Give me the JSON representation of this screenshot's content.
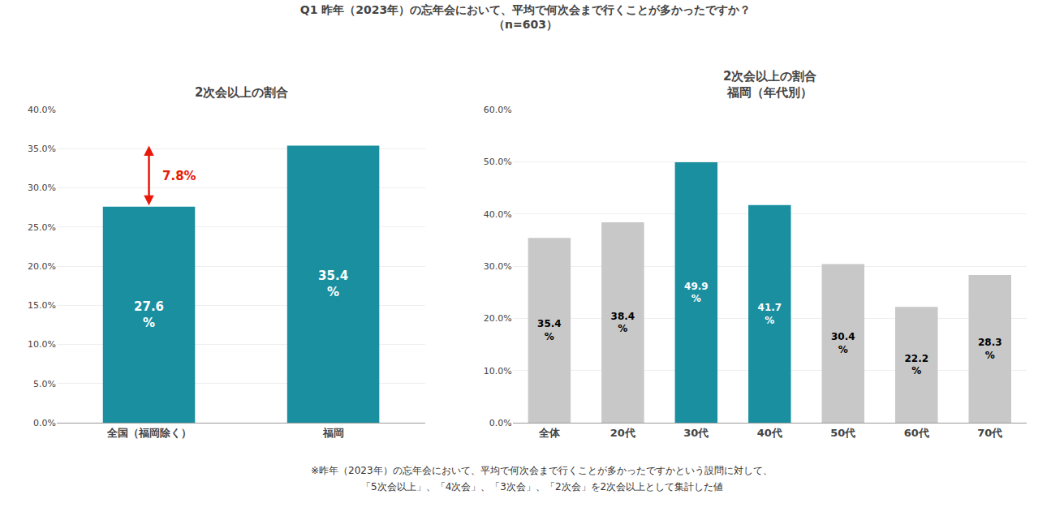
{
  "title": [
    "Q1 昨年（2023年）の忘年会において、平均で何次会まで行くことが多かったですか？",
    "（n=603）"
  ],
  "annotations": [
    "※昨年（2023年）の忘年会において、平均で何次会まで行くことが多かったですかという設問に対して、",
    "「5次会以上」、「4次会」、「3次会」、「2次会」を2次会以上として集計した値"
  ],
  "chart_data": [
    {
      "type": "bar",
      "title": [
        "2次会以上の割合"
      ],
      "categories": [
        "全国（福岡除く）",
        "福岡"
      ],
      "values": [
        27.6,
        35.4
      ],
      "value_labels": [
        "27.6\n%",
        "35.4\n%"
      ],
      "data_labels": true,
      "colors": [
        "#1a8fa0",
        "#1a8fa0"
      ],
      "ylim": [
        0,
        40
      ],
      "yticks": [
        {
          "value": 0,
          "label": "0.0%"
        },
        {
          "value": 5,
          "label": "5.0%"
        },
        {
          "value": 10,
          "label": "10.0%"
        },
        {
          "value": 15,
          "label": "15.0%"
        },
        {
          "value": 20,
          "label": "20.0%"
        },
        {
          "value": 25,
          "label": "25.0%"
        },
        {
          "value": 30,
          "label": "30.0%"
        },
        {
          "value": 35,
          "label": "35.0%"
        },
        {
          "value": 40,
          "label": "40.0%"
        }
      ],
      "grid": true,
      "annotations": [
        {
          "text": "7.8%",
          "category": "全国（福岡除く）",
          "from": 27.6,
          "to": 35.4,
          "color": "#e8190a"
        }
      ]
    },
    {
      "type": "bar",
      "title": [
        "2次会以上の割合",
        "福岡（年代別）"
      ],
      "categories": [
        "全体",
        "20代",
        "30代",
        "40代",
        "50代",
        "60代",
        "70代"
      ],
      "values": [
        35.4,
        38.4,
        49.9,
        41.7,
        30.4,
        22.2,
        28.3
      ],
      "value_labels": [
        "35.4\n%",
        "38.4\n%",
        "49.9\n%",
        "41.7\n%",
        "30.4\n%",
        "22.2\n%",
        "28.3\n%"
      ],
      "data_labels": true,
      "colors": [
        "#c8c8c8",
        "#c8c8c8",
        "#1a8fa0",
        "#1a8fa0",
        "#c8c8c8",
        "#c8c8c8",
        "#c8c8c8"
      ],
      "ylim": [
        0,
        60
      ],
      "yticks": [
        {
          "value": 0,
          "label": "0.0%"
        },
        {
          "value": 10,
          "label": "10.0%"
        },
        {
          "value": 20,
          "label": "20.0%"
        },
        {
          "value": 30,
          "label": "30.0%"
        },
        {
          "value": 40,
          "label": "40.0%"
        },
        {
          "value": 50,
          "label": "50.0%"
        },
        {
          "value": 60,
          "label": "60.0%"
        }
      ],
      "grid": true
    }
  ]
}
